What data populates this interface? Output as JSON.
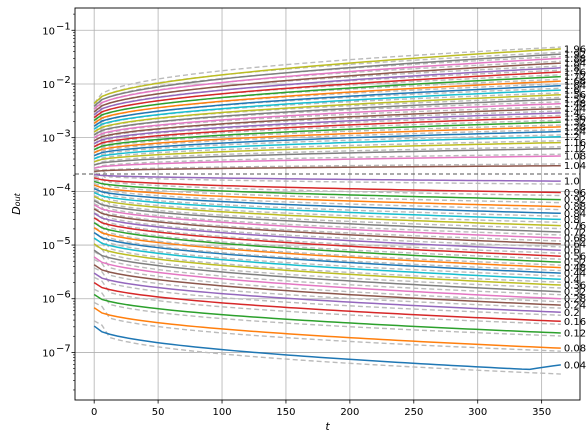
{
  "chart_data": {
    "type": "line",
    "title": "",
    "xlabel": "t",
    "ylabel_main": "D",
    "ylabel_sub": "out",
    "x_scale": "linear",
    "y_scale": "log",
    "xlim": [
      -15,
      380
    ],
    "ylim": [
      1.3e-08,
      0.26
    ],
    "grid": true,
    "x_ticks": [
      0,
      50,
      100,
      150,
      200,
      250,
      300,
      350
    ],
    "x_tick_labels": [
      "0",
      "50",
      "100",
      "150",
      "200",
      "250",
      "300",
      "350"
    ],
    "y_ticks": [
      1e-07,
      1e-06,
      1e-05,
      0.0001,
      0.001,
      0.01,
      0.1
    ],
    "y_tick_labels_exp": [
      "−7",
      "−6",
      "−5",
      "−4",
      "−3",
      "−2",
      "−1"
    ],
    "y_tick_base": "10",
    "reference_line": {
      "y": 0.00021,
      "style": "dashed"
    },
    "t_end": 365,
    "series_labels": [
      "0.04",
      "0.08",
      "0.12",
      "0.16",
      "0.2",
      "0.24",
      "0.28",
      "0.32",
      "0.36",
      "0.4",
      "0.44",
      "0.48",
      "0.52",
      "0.56",
      "0.6",
      "0.64",
      "0.68",
      "0.72",
      "0.76",
      "0.8",
      "0.84",
      "0.88",
      "0.92",
      "0.96",
      "1.0",
      "1.04",
      "1.08",
      "1.12",
      "1.16",
      "1.2",
      "1.24",
      "1.28",
      "1.32",
      "1.36",
      "1.4",
      "1.44",
      "1.48",
      "1.52",
      "1.56",
      "1.6",
      "1.64",
      "1.68",
      "1.72",
      "1.76",
      "1.8",
      "1.84",
      "1.88",
      "1.92",
      "1.96"
    ],
    "series_start": [
      3.1e-07,
      6.8e-07,
      1.2e-06,
      2e-06,
      3e-06,
      4.3e-06,
      6e-06,
      8e-06,
      1.05e-05,
      1.35e-05,
      1.7e-05,
      2.1e-05,
      2.6e-05,
      3.2e-05,
      3.9e-05,
      4.7e-05,
      5.6e-05,
      6.7e-05,
      8e-05,
      9.5e-05,
      0.000112,
      0.000131,
      0.000153,
      0.000178,
      0.000205,
      0.000235,
      0.00027,
      0.00031,
      0.000355,
      0.000405,
      0.000462,
      0.000526,
      0.000598,
      0.00068,
      0.000772,
      0.000876,
      0.000993,
      0.001125,
      0.001274,
      0.001442,
      0.001632,
      0.001846,
      0.002088,
      0.00236,
      0.002668,
      0.003015,
      0.003405,
      0.003845,
      0.00434
    ],
    "series_end": [
      4.5e-08,
      1.2e-07,
      2.3e-07,
      3.8e-07,
      5.6e-07,
      7.6e-07,
      1e-06,
      1.35e-06,
      1.8e-06,
      2.3e-06,
      3e-06,
      3.8e-06,
      4.8e-06,
      6.2e-06,
      8e-06,
      1.05e-05,
      1.35e-05,
      1.75e-05,
      2.3e-05,
      3e-05,
      3.9e-05,
      5.2e-05,
      7e-05,
      9.5e-05,
      0.000155,
      0.0003,
      0.000455,
      0.000625,
      0.00081,
      0.00104,
      0.0013,
      0.00159,
      0.00195,
      0.0024,
      0.0029,
      0.0035,
      0.0043,
      0.0052,
      0.0063,
      0.0077,
      0.0093,
      0.0113,
      0.0137,
      0.0167,
      0.02,
      0.0245,
      0.03,
      0.036,
      0.045
    ]
  }
}
